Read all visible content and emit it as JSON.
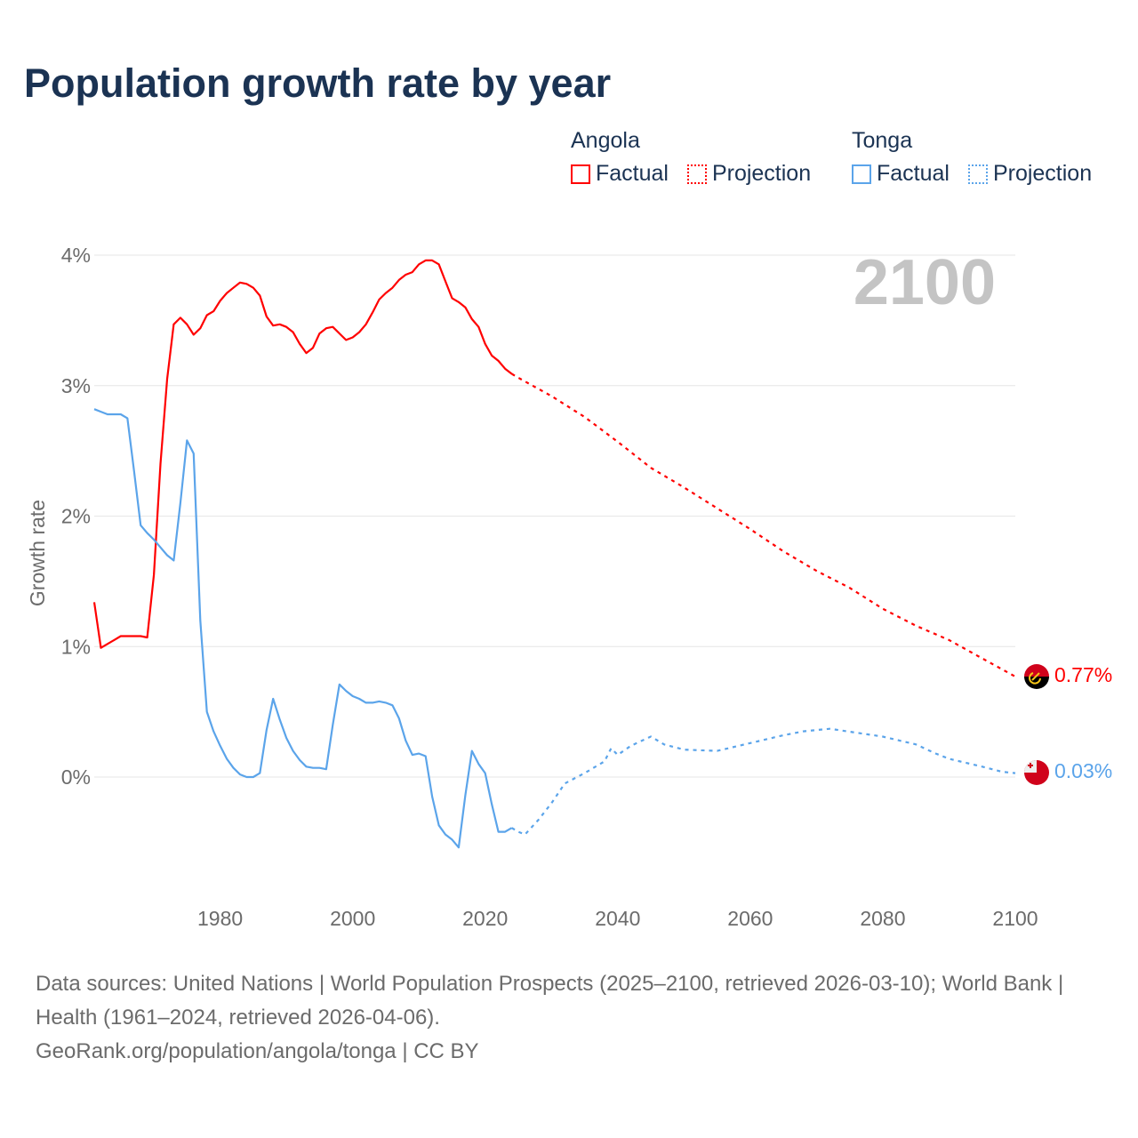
{
  "title": "Population growth rate by year",
  "legend": [
    {
      "country": "Angola",
      "color": "#ff0000",
      "factual": "Factual",
      "projection": "Projection"
    },
    {
      "country": "Tonga",
      "color": "#5ba4ea",
      "factual": "Factual",
      "projection": "Projection"
    }
  ],
  "year_label": "2100",
  "source_line1": "Data sources: United Nations | World Population Prospects (2025–2100, retrieved 2026-03-10); World Bank | Health (1961–2024, retrieved 2026-04-06).",
  "source_line2": "GeoRank.org/population/angola/tonga | CC BY",
  "chart_data": {
    "type": "line",
    "title": "Population growth rate by year",
    "xlabel": "",
    "ylabel": "Growth rate",
    "xlim": [
      1961,
      2100
    ],
    "ylim": [
      -0.9,
      4.1
    ],
    "x_ticks": [
      1980,
      2000,
      2020,
      2040,
      2060,
      2080,
      2100
    ],
    "x_tick_labels": [
      "1980",
      "2000",
      "2020",
      "2040",
      "2060",
      "2080",
      "2100"
    ],
    "y_ticks": [
      0,
      1,
      2,
      3,
      4
    ],
    "y_tick_labels": [
      "0%",
      "1%",
      "2%",
      "3%",
      "4%"
    ],
    "grid": true,
    "legend_position": "top-right",
    "series": [
      {
        "name": "Angola Factual",
        "country": "Angola",
        "kind": "factual",
        "color": "#ff0000",
        "x_start": 1961,
        "values": [
          1.34,
          0.99,
          1.02,
          1.05,
          1.08,
          1.08,
          1.08,
          1.08,
          1.07,
          1.55,
          2.4,
          3.05,
          3.47,
          3.52,
          3.47,
          3.39,
          3.44,
          3.54,
          3.57,
          3.65,
          3.71,
          3.75,
          3.79,
          3.78,
          3.75,
          3.69,
          3.53,
          3.46,
          3.47,
          3.45,
          3.41,
          3.32,
          3.25,
          3.29,
          3.4,
          3.44,
          3.45,
          3.4,
          3.35,
          3.37,
          3.41,
          3.47,
          3.56,
          3.66,
          3.71,
          3.75,
          3.81,
          3.85,
          3.87,
          3.93,
          3.96,
          3.96,
          3.93,
          3.8,
          3.67,
          3.64,
          3.6,
          3.51,
          3.45,
          3.32,
          3.23,
          3.19,
          3.13,
          3.09
        ]
      },
      {
        "name": "Angola Projection",
        "country": "Angola",
        "kind": "projection",
        "color": "#ff0000",
        "x": [
          2024,
          2025,
          2030,
          2035,
          2040,
          2045,
          2050,
          2055,
          2060,
          2065,
          2070,
          2075,
          2080,
          2085,
          2090,
          2095,
          2100
        ],
        "values": [
          3.09,
          3.06,
          2.92,
          2.76,
          2.57,
          2.37,
          2.22,
          2.06,
          1.9,
          1.73,
          1.58,
          1.45,
          1.29,
          1.16,
          1.05,
          0.91,
          0.77
        ]
      },
      {
        "name": "Tonga Factual",
        "country": "Tonga",
        "kind": "factual",
        "color": "#5ba4ea",
        "x_start": 1961,
        "values": [
          2.82,
          2.8,
          2.78,
          2.78,
          2.78,
          2.75,
          2.35,
          1.93,
          1.87,
          1.82,
          1.76,
          1.7,
          1.66,
          2.1,
          2.58,
          2.48,
          1.2,
          0.5,
          0.35,
          0.24,
          0.14,
          0.07,
          0.02,
          0.0,
          0.0,
          0.03,
          0.36,
          0.6,
          0.44,
          0.3,
          0.2,
          0.13,
          0.08,
          0.07,
          0.07,
          0.06,
          0.4,
          0.71,
          0.66,
          0.62,
          0.6,
          0.57,
          0.57,
          0.58,
          0.57,
          0.55,
          0.45,
          0.28,
          0.17,
          0.18,
          0.16,
          -0.15,
          -0.37,
          -0.44,
          -0.48,
          -0.54,
          -0.14,
          0.2,
          0.1,
          0.03,
          -0.21,
          -0.42,
          -0.42,
          -0.39
        ]
      },
      {
        "name": "Tonga Projection",
        "country": "Tonga",
        "kind": "projection",
        "color": "#5ba4ea",
        "x": [
          2024,
          2025,
          2026,
          2028,
          2030,
          2032,
          2035,
          2038,
          2039,
          2040,
          2042,
          2045,
          2047,
          2050,
          2055,
          2060,
          2065,
          2068,
          2072,
          2076,
          2080,
          2085,
          2088,
          2090,
          2095,
          2098,
          2100
        ],
        "values": [
          -0.39,
          -0.42,
          -0.44,
          -0.33,
          -0.2,
          -0.05,
          0.03,
          0.12,
          0.22,
          0.17,
          0.24,
          0.31,
          0.25,
          0.21,
          0.2,
          0.26,
          0.32,
          0.35,
          0.37,
          0.34,
          0.31,
          0.25,
          0.18,
          0.14,
          0.08,
          0.04,
          0.03
        ]
      }
    ],
    "end_labels": [
      {
        "country": "Angola",
        "text": "0.77%",
        "value": 0.77,
        "color": "#ff0000"
      },
      {
        "country": "Tonga",
        "text": "0.03%",
        "value": 0.03,
        "color": "#5ba4ea"
      }
    ]
  }
}
